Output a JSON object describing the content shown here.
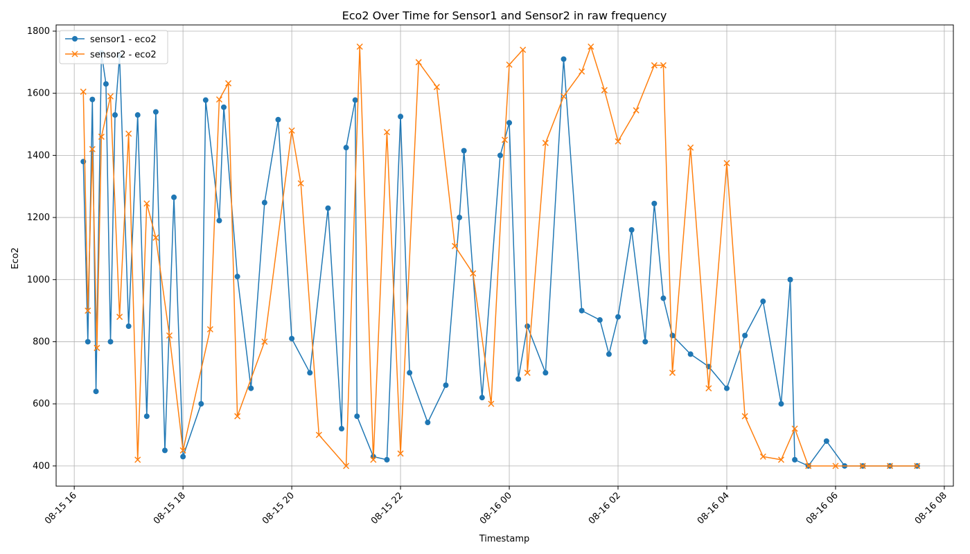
{
  "chart_data": {
    "type": "line",
    "title": "Eco2 Over Time for Sensor1 and Sensor2 in raw frequency",
    "xlabel": "Timestamp",
    "ylabel": "Eco2",
    "x_type": "datetime",
    "xlim": [
      "2024-08-15 15:40",
      "2024-08-16 08:10"
    ],
    "ylim": [
      335,
      1820
    ],
    "x_ticks": [
      {
        "t": "2024-08-15 16:00",
        "label": "08-15 16"
      },
      {
        "t": "2024-08-15 18:00",
        "label": "08-15 18"
      },
      {
        "t": "2024-08-15 20:00",
        "label": "08-15 20"
      },
      {
        "t": "2024-08-15 22:00",
        "label": "08-15 22"
      },
      {
        "t": "2024-08-16 00:00",
        "label": "08-16 00"
      },
      {
        "t": "2024-08-16 02:00",
        "label": "08-16 02"
      },
      {
        "t": "2024-08-16 04:00",
        "label": "08-16 04"
      },
      {
        "t": "2024-08-16 06:00",
        "label": "08-16 06"
      },
      {
        "t": "2024-08-16 08:00",
        "label": "08-16 08"
      }
    ],
    "y_ticks": [
      400,
      600,
      800,
      1000,
      1200,
      1400,
      1600,
      1800
    ],
    "grid": true,
    "legend_position": "top-left",
    "series": [
      {
        "name": "sensor1 - eco2",
        "color": "#1f77b4",
        "marker": "circle",
        "x": [
          "2024-08-15 16:10",
          "2024-08-15 16:15",
          "2024-08-15 16:20",
          "2024-08-15 16:24",
          "2024-08-15 16:30",
          "2024-08-15 16:35",
          "2024-08-15 16:40",
          "2024-08-15 16:45",
          "2024-08-15 16:50",
          "2024-08-15 17:00",
          "2024-08-15 17:10",
          "2024-08-15 17:20",
          "2024-08-15 17:30",
          "2024-08-15 17:40",
          "2024-08-15 17:50",
          "2024-08-15 18:00",
          "2024-08-15 18:20",
          "2024-08-15 18:25",
          "2024-08-15 18:40",
          "2024-08-15 18:45",
          "2024-08-15 19:00",
          "2024-08-15 19:15",
          "2024-08-15 19:30",
          "2024-08-15 19:45",
          "2024-08-15 20:00",
          "2024-08-15 20:20",
          "2024-08-15 20:40",
          "2024-08-15 20:55",
          "2024-08-15 21:00",
          "2024-08-15 21:10",
          "2024-08-15 21:12",
          "2024-08-15 21:30",
          "2024-08-15 21:45",
          "2024-08-15 22:00",
          "2024-08-15 22:10",
          "2024-08-15 22:30",
          "2024-08-15 22:50",
          "2024-08-15 23:05",
          "2024-08-15 23:10",
          "2024-08-15 23:30",
          "2024-08-15 23:50",
          "2024-08-16 00:00",
          "2024-08-16 00:10",
          "2024-08-16 00:20",
          "2024-08-16 00:40",
          "2024-08-16 01:00",
          "2024-08-16 01:20",
          "2024-08-16 01:40",
          "2024-08-16 01:50",
          "2024-08-16 02:00",
          "2024-08-16 02:15",
          "2024-08-16 02:30",
          "2024-08-16 02:40",
          "2024-08-16 02:50",
          "2024-08-16 03:00",
          "2024-08-16 03:20",
          "2024-08-16 03:40",
          "2024-08-16 04:00",
          "2024-08-16 04:20",
          "2024-08-16 04:40",
          "2024-08-16 05:00",
          "2024-08-16 05:10",
          "2024-08-16 05:15",
          "2024-08-16 05:30",
          "2024-08-16 05:50",
          "2024-08-16 06:10",
          "2024-08-16 06:30",
          "2024-08-16 07:00",
          "2024-08-16 07:30"
        ],
        "y": [
          1380,
          800,
          1580,
          640,
          1730,
          1630,
          800,
          1530,
          1720,
          850,
          1530,
          560,
          1540,
          450,
          1265,
          430,
          600,
          1578,
          1190,
          1555,
          1010,
          650,
          1248,
          1515,
          810,
          700,
          1230,
          520,
          1425,
          1578,
          560,
          430,
          420,
          1525,
          700,
          540,
          660,
          1200,
          1415,
          620,
          1400,
          1505,
          680,
          850,
          700,
          1710,
          900,
          870,
          760,
          880,
          1160,
          800,
          1245,
          940,
          820,
          760,
          720,
          650,
          820,
          930,
          600,
          1000,
          420,
          400,
          480,
          400,
          400,
          400,
          400
        ]
      },
      {
        "name": "sensor2 - eco2",
        "color": "#ff7f0e",
        "marker": "x",
        "x": [
          "2024-08-15 16:10",
          "2024-08-15 16:15",
          "2024-08-15 16:20",
          "2024-08-15 16:25",
          "2024-08-15 16:30",
          "2024-08-15 16:40",
          "2024-08-15 16:50",
          "2024-08-15 17:00",
          "2024-08-15 17:10",
          "2024-08-15 17:20",
          "2024-08-15 17:30",
          "2024-08-15 17:45",
          "2024-08-15 18:00",
          "2024-08-15 18:30",
          "2024-08-15 18:40",
          "2024-08-15 18:50",
          "2024-08-15 19:00",
          "2024-08-15 19:30",
          "2024-08-15 20:00",
          "2024-08-15 20:10",
          "2024-08-15 20:30",
          "2024-08-15 21:00",
          "2024-08-15 21:15",
          "2024-08-15 21:30",
          "2024-08-15 21:45",
          "2024-08-15 22:00",
          "2024-08-15 22:20",
          "2024-08-15 22:40",
          "2024-08-15 23:00",
          "2024-08-15 23:20",
          "2024-08-15 23:40",
          "2024-08-15 23:55",
          "2024-08-16 00:00",
          "2024-08-16 00:15",
          "2024-08-16 00:20",
          "2024-08-16 00:40",
          "2024-08-16 01:00",
          "2024-08-16 01:20",
          "2024-08-16 01:30",
          "2024-08-16 01:45",
          "2024-08-16 02:00",
          "2024-08-16 02:20",
          "2024-08-16 02:40",
          "2024-08-16 02:50",
          "2024-08-16 03:00",
          "2024-08-16 03:20",
          "2024-08-16 03:40",
          "2024-08-16 04:00",
          "2024-08-16 04:20",
          "2024-08-16 04:40",
          "2024-08-16 05:00",
          "2024-08-16 05:15",
          "2024-08-16 05:30",
          "2024-08-16 06:00",
          "2024-08-16 06:30",
          "2024-08-16 07:00",
          "2024-08-16 07:30"
        ],
        "y": [
          1605,
          900,
          1420,
          780,
          1460,
          1590,
          880,
          1470,
          420,
          1245,
          1135,
          820,
          450,
          840,
          1580,
          1632,
          560,
          800,
          1480,
          1310,
          500,
          400,
          1750,
          420,
          1475,
          440,
          1700,
          1620,
          1108,
          1020,
          600,
          1450,
          1692,
          1740,
          700,
          1440,
          1590,
          1670,
          1750,
          1610,
          1445,
          1545,
          1690,
          1690,
          700,
          1425,
          650,
          1375,
          560,
          430,
          420,
          520,
          400,
          400,
          400,
          400,
          400
        ]
      }
    ]
  }
}
